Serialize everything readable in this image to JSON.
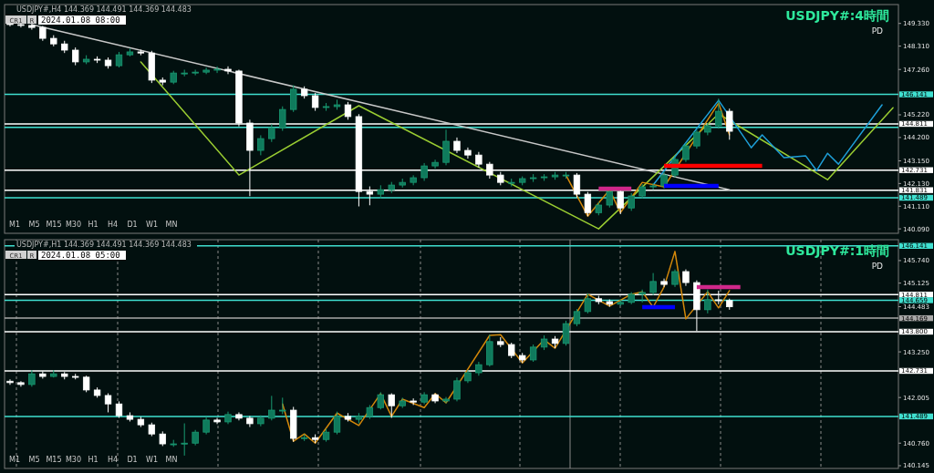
{
  "chart_data": [
    {
      "type": "candlestick",
      "title": "USDJPY#:4時間",
      "subtitle": "PD",
      "annotations": [
        "USDJPY#,H4  144.369 144.491 144.369 144.483",
        "CR1",
        "R",
        "2024.01.08 08:00",
        "M1",
        "M5",
        "M15",
        "M30",
        "H1",
        "H4",
        "D1",
        "W1",
        "MN"
      ],
      "categories": [
        null,
        null,
        null,
        null,
        null,
        null,
        null,
        null,
        null,
        null,
        null,
        null,
        null,
        null,
        null,
        null,
        null,
        null,
        null,
        null,
        null,
        null,
        null,
        null,
        null,
        null,
        null,
        null,
        null,
        null,
        null,
        null,
        null,
        null,
        null,
        null,
        null,
        null,
        null,
        null,
        null,
        null,
        null,
        null,
        null,
        null,
        null,
        null,
        null,
        null,
        null,
        null,
        null,
        null,
        null,
        null,
        null,
        null,
        null,
        null,
        null,
        null,
        null,
        null,
        null,
        null,
        null,
        null,
        null,
        null,
        null,
        null,
        null,
        null,
        null,
        null,
        null,
        null,
        null,
        null,
        null,
        null
      ],
      "colors": [
        "#ffffff",
        "#ffffff",
        "#ffffff",
        "#ffffff",
        "#ffffff",
        "#ffffff",
        "#ffffff",
        "#0f7a5c",
        "#ffffff",
        "#ffffff",
        "#0f7a5c",
        "#0f7a5c",
        "#ffffff",
        "#ffffff",
        "#ffffff",
        "#0f7a5c",
        "#0f7a5c",
        "#0f7a5c",
        "#0f7a5c",
        "#0f7a5c",
        "#ffffff",
        "#ffffff",
        "#ffffff",
        "#0f7a5c",
        "#0f7a5c",
        "#0f7a5c",
        "#0f7a5c",
        "#ffffff",
        "#ffffff",
        "#0f7a5c",
        "#0f7a5c",
        "#ffffff",
        "#ffffff",
        "#ffffff",
        "#0f7a5c",
        "#0f7a5c",
        "#0f7a5c",
        "#0f7a5c",
        "#0f7a5c",
        "#0f7a5c",
        "#0f7a5c",
        "#ffffff",
        "#ffffff",
        "#ffffff",
        "#ffffff",
        "#ffffff",
        "#0f7a5c",
        "#0f7a5c",
        "#0f7a5c",
        "#0f7a5c",
        "#0f7a5c",
        "#0f7a5c",
        "#ffffff",
        "#ffffff",
        "#0f7a5c",
        "#0f7a5c",
        "#ffffff",
        "#0f7a5c",
        "#0f7a5c",
        "#0f7a5c",
        "#0f7a5c",
        "#0f7a5c",
        "#0f7a5c",
        "#0f7a5c",
        "#0f7a5c",
        "#0f7a5c",
        "#ffffff",
        null,
        null,
        null,
        null,
        null,
        null,
        null,
        null,
        null,
        null,
        null,
        null,
        null,
        null,
        null
      ],
      "ohlc": [
        [
          149.35,
          149.45,
          149.2,
          149.28
        ],
        [
          149.28,
          149.38,
          149.15,
          149.24
        ],
        [
          149.24,
          149.3,
          149.05,
          149.15
        ],
        [
          149.15,
          149.22,
          148.55,
          148.66
        ],
        [
          148.66,
          148.8,
          148.3,
          148.41
        ],
        [
          148.41,
          148.55,
          148.0,
          148.13
        ],
        [
          148.13,
          148.25,
          147.45,
          147.6
        ],
        [
          147.6,
          147.9,
          147.5,
          147.72
        ],
        [
          147.72,
          147.85,
          147.55,
          147.68
        ],
        [
          147.68,
          147.8,
          147.3,
          147.43
        ],
        [
          147.43,
          148.05,
          147.35,
          147.92
        ],
        [
          147.92,
          148.2,
          147.85,
          148.05
        ],
        [
          148.05,
          148.15,
          147.9,
          148.0
        ],
        [
          148.0,
          148.1,
          146.65,
          146.78
        ],
        [
          146.78,
          146.9,
          146.55,
          146.69
        ],
        [
          146.69,
          147.2,
          146.6,
          147.1
        ],
        [
          147.1,
          147.25,
          146.95,
          147.1
        ],
        [
          147.1,
          147.25,
          147.0,
          147.14
        ],
        [
          147.14,
          147.35,
          147.05,
          147.23
        ],
        [
          147.23,
          147.4,
          147.1,
          147.27
        ],
        [
          147.27,
          147.4,
          147.05,
          147.19
        ],
        [
          147.19,
          147.25,
          144.7,
          144.85
        ],
        [
          144.85,
          145.0,
          141.56,
          143.62
        ],
        [
          143.62,
          144.3,
          143.4,
          144.15
        ],
        [
          144.15,
          144.8,
          144.0,
          144.64
        ],
        [
          144.64,
          145.6,
          144.5,
          145.46
        ],
        [
          145.46,
          146.55,
          145.35,
          146.37
        ],
        [
          146.37,
          146.5,
          145.95,
          146.08
        ],
        [
          146.08,
          146.2,
          145.4,
          145.55
        ],
        [
          145.55,
          145.75,
          145.4,
          145.59
        ],
        [
          145.59,
          145.9,
          145.45,
          145.67
        ],
        [
          145.67,
          145.8,
          145.0,
          145.14
        ],
        [
          145.14,
          145.25,
          141.1,
          141.77
        ],
        [
          141.77,
          142.0,
          141.15,
          141.65
        ],
        [
          141.65,
          142.05,
          141.45,
          141.85
        ],
        [
          141.85,
          142.2,
          141.7,
          142.06
        ],
        [
          142.06,
          142.35,
          141.95,
          142.18
        ],
        [
          142.18,
          142.5,
          142.05,
          142.39
        ],
        [
          142.39,
          143.05,
          142.25,
          142.92
        ],
        [
          142.92,
          143.2,
          142.8,
          143.08
        ],
        [
          143.08,
          144.55,
          142.95,
          144.03
        ],
        [
          144.03,
          144.2,
          143.5,
          143.62
        ],
        [
          143.62,
          143.75,
          143.25,
          143.41
        ],
        [
          143.41,
          143.55,
          142.85,
          143.0
        ],
        [
          143.0,
          143.1,
          142.35,
          142.51
        ],
        [
          142.51,
          142.65,
          142.05,
          142.18
        ],
        [
          142.18,
          142.35,
          142.0,
          142.18
        ],
        [
          142.18,
          142.45,
          142.05,
          142.35
        ],
        [
          142.35,
          142.55,
          142.2,
          142.39
        ],
        [
          142.39,
          142.55,
          142.25,
          142.43
        ],
        [
          142.43,
          142.65,
          142.3,
          142.51
        ],
        [
          142.51,
          142.65,
          142.35,
          142.51
        ],
        [
          142.51,
          142.6,
          141.5,
          141.65
        ],
        [
          141.65,
          141.75,
          140.66,
          140.82
        ],
        [
          140.82,
          141.3,
          140.7,
          141.16
        ],
        [
          141.16,
          141.9,
          141.05,
          141.77
        ],
        [
          141.77,
          141.85,
          140.75,
          141.03
        ],
        [
          141.03,
          141.7,
          140.9,
          141.57
        ],
        [
          141.57,
          142.1,
          141.45,
          141.98
        ],
        [
          141.98,
          142.15,
          141.85,
          142.02
        ],
        [
          142.02,
          142.65,
          141.9,
          142.51
        ],
        [
          142.51,
          143.35,
          142.4,
          143.21
        ],
        [
          143.21,
          143.95,
          143.1,
          143.82
        ],
        [
          143.82,
          144.55,
          143.7,
          144.44
        ],
        [
          144.44,
          144.85,
          144.3,
          144.73
        ],
        [
          144.73,
          145.95,
          144.6,
          145.38
        ],
        [
          145.38,
          145.5,
          144.1,
          144.48
        ],
        null,
        null,
        null,
        null,
        null,
        null,
        null,
        null,
        null,
        null,
        null,
        null,
        null,
        null,
        null
      ],
      "series": [
        {
          "type": "line",
          "color": "#c8c8c8",
          "values": [
            null,
            null,
            149.28,
            null,
            null,
            null,
            null,
            null,
            null,
            null,
            null,
            null,
            null,
            null,
            null,
            null,
            null,
            null,
            null,
            null,
            null,
            null,
            null,
            null,
            null,
            null,
            null,
            null,
            null,
            null,
            null,
            null,
            null,
            null,
            null,
            null,
            null,
            null,
            null,
            null,
            null,
            null,
            null,
            null,
            null,
            null,
            null,
            null,
            null,
            null,
            null,
            null,
            null,
            null,
            null,
            null,
            null,
            null,
            null,
            null,
            null,
            null,
            null,
            null,
            null,
            null,
            141.85,
            null,
            null,
            null,
            null,
            null,
            null,
            null,
            null,
            null,
            null,
            null,
            null,
            null,
            null,
            null
          ]
        },
        {
          "type": "line",
          "color": "#9acd32",
          "values": [
            null,
            null,
            null,
            null,
            null,
            null,
            null,
            null,
            null,
            null,
            null,
            null,
            147.6,
            null,
            null,
            null,
            null,
            null,
            null,
            null,
            null,
            142.51,
            null,
            null,
            null,
            null,
            null,
            null,
            null,
            null,
            null,
            null,
            145.63,
            null,
            null,
            null,
            null,
            null,
            null,
            null,
            null,
            null,
            null,
            null,
            null,
            null,
            null,
            null,
            null,
            null,
            null,
            null,
            null,
            null,
            140.09,
            null,
            null,
            null,
            null,
            null,
            null,
            null,
            null,
            null,
            null,
            145.26,
            null,
            null,
            null,
            null,
            null,
            null,
            null,
            null,
            null,
            142.3,
            null,
            null,
            null,
            null,
            null,
            145.54
          ]
        },
        {
          "type": "line",
          "color": "#1e9fd8",
          "values": [
            null,
            null,
            null,
            null,
            null,
            null,
            null,
            null,
            null,
            null,
            null,
            null,
            null,
            null,
            null,
            null,
            null,
            null,
            null,
            null,
            null,
            null,
            null,
            null,
            null,
            null,
            null,
            null,
            null,
            null,
            null,
            null,
            null,
            null,
            null,
            null,
            null,
            null,
            null,
            null,
            null,
            null,
            null,
            null,
            null,
            null,
            null,
            null,
            null,
            null,
            null,
            null,
            null,
            null,
            null,
            null,
            null,
            null,
            null,
            142.06,
            null,
            null,
            null,
            null,
            null,
            145.87,
            null,
            null,
            143.74,
            144.32,
            null,
            143.29,
            null,
            143.37,
            142.71,
            143.49,
            143.0,
            null,
            null,
            null,
            145.67,
            null
          ]
        },
        {
          "type": "line",
          "color": "#d4880a",
          "values": [
            null,
            null,
            null,
            null,
            null,
            null,
            null,
            null,
            null,
            null,
            null,
            null,
            null,
            null,
            null,
            null,
            null,
            null,
            null,
            null,
            null,
            null,
            null,
            null,
            null,
            null,
            null,
            null,
            null,
            null,
            null,
            null,
            null,
            null,
            null,
            null,
            null,
            null,
            null,
            null,
            null,
            null,
            null,
            null,
            null,
            null,
            null,
            null,
            null,
            null,
            null,
            142.51,
            null,
            140.66,
            null,
            141.85,
            140.82,
            null,
            142.18,
            null,
            141.98,
            null,
            null,
            null,
            null,
            145.75,
            144.32,
            null,
            null,
            null,
            null,
            null,
            null,
            null,
            null,
            null,
            null,
            null,
            null,
            null,
            null,
            null
          ]
        },
        {
          "type": "step",
          "color": "#d0288a",
          "values": [
            null,
            null,
            null,
            null,
            null,
            null,
            null,
            null,
            null,
            null,
            null,
            null,
            null,
            null,
            null,
            null,
            null,
            null,
            null,
            null,
            null,
            null,
            null,
            null,
            null,
            null,
            null,
            null,
            null,
            null,
            null,
            null,
            null,
            null,
            null,
            null,
            null,
            null,
            null,
            null,
            null,
            null,
            null,
            null,
            null,
            null,
            null,
            null,
            null,
            null,
            null,
            null,
            null,
            null,
            141.9,
            null,
            null,
            141.9,
            null,
            null,
            null,
            null,
            null,
            null,
            null,
            null,
            null,
            null,
            null,
            null,
            null,
            null,
            null,
            null,
            null,
            null,
            null,
            null,
            null,
            null,
            null,
            null
          ]
        },
        {
          "type": "step",
          "color": "#0000ff",
          "values": [
            null,
            null,
            null,
            null,
            null,
            null,
            null,
            null,
            null,
            null,
            null,
            null,
            null,
            null,
            null,
            null,
            null,
            null,
            null,
            null,
            null,
            null,
            null,
            null,
            null,
            null,
            null,
            null,
            null,
            null,
            null,
            null,
            null,
            null,
            null,
            null,
            null,
            null,
            null,
            null,
            null,
            null,
            null,
            null,
            null,
            null,
            null,
            null,
            null,
            null,
            null,
            null,
            null,
            null,
            null,
            null,
            null,
            null,
            null,
            null,
            142.02,
            null,
            null,
            null,
            null,
            142.02,
            null,
            null,
            null,
            null,
            null,
            null,
            null,
            null,
            null,
            null,
            null,
            null,
            null,
            null,
            null,
            null
          ]
        },
        {
          "type": "step",
          "color": "#ff0000",
          "values": [
            null,
            null,
            null,
            null,
            null,
            null,
            null,
            null,
            null,
            null,
            null,
            null,
            null,
            null,
            null,
            null,
            null,
            null,
            null,
            null,
            null,
            null,
            null,
            null,
            null,
            null,
            null,
            null,
            null,
            null,
            null,
            null,
            null,
            null,
            null,
            null,
            null,
            null,
            null,
            null,
            null,
            null,
            null,
            null,
            null,
            null,
            null,
            null,
            null,
            null,
            null,
            null,
            null,
            null,
            null,
            null,
            null,
            null,
            null,
            null,
            142.92,
            null,
            null,
            null,
            null,
            null,
            null,
            null,
            null,
            142.92,
            null,
            null,
            null,
            null,
            null,
            null,
            null,
            null,
            null,
            null,
            null,
            null
          ]
        }
      ],
      "ylim": [
        139.89,
        150.18
      ],
      "yticks": [
        {
          "value": 149.33,
          "label": "149.330"
        },
        {
          "value": 148.31,
          "label": "148.310"
        },
        {
          "value": 147.26,
          "label": "147.260"
        },
        {
          "value": 145.22,
          "label": "145.220"
        },
        {
          "value": 144.2,
          "label": "144.200"
        },
        {
          "value": 143.15,
          "label": "143.150"
        },
        {
          "value": 142.13,
          "label": "142.130"
        },
        {
          "value": 141.11,
          "label": "141.110"
        },
        {
          "value": 140.09,
          "label": "140.090"
        }
      ],
      "ref_lines": [
        {
          "axis": "y",
          "value": 146.141,
          "label": "146.141",
          "color": "#40e0d0"
        },
        {
          "axis": "y",
          "value": 144.811,
          "label": "144.811",
          "color": "#ffffff"
        },
        {
          "axis": "y",
          "value": 144.659,
          "label": null,
          "color": "#40e0d0"
        },
        {
          "axis": "y",
          "value": 142.731,
          "label": "142.731",
          "color": "#ffffff"
        },
        {
          "axis": "y",
          "value": 141.831,
          "label": "141.831",
          "color": "#ffffff"
        },
        {
          "axis": "y",
          "value": 141.489,
          "label": "141.489",
          "color": "#40e0d0"
        }
      ],
      "tick_labels": "y"
    },
    {
      "type": "candlestick",
      "title": "USDJPY#:1時間",
      "subtitle": "PD",
      "annotations": [
        "USDJPY#,H1  144.369 144.491 144.369 144.483",
        "CR1",
        "R",
        "2024.01.08 05:00",
        "M1",
        "M5",
        "M15",
        "M30",
        "H1",
        "H4",
        "D1",
        "W1",
        "MN"
      ],
      "categories": [
        null,
        null,
        null,
        null,
        null,
        null,
        null,
        null,
        null,
        null,
        null,
        null,
        null,
        null,
        null,
        null,
        null,
        null,
        null,
        null,
        null,
        null,
        null,
        null,
        null,
        null,
        null,
        null,
        null,
        null,
        null,
        null,
        null,
        null,
        null,
        null,
        null,
        null,
        null,
        null,
        null,
        null,
        null,
        null,
        null,
        null,
        null,
        null,
        null,
        null,
        null,
        null,
        null,
        null,
        null,
        null,
        null,
        null,
        null,
        null,
        null,
        null,
        null,
        null,
        null,
        null,
        null,
        null,
        null,
        null,
        null,
        null,
        null,
        null,
        null,
        null,
        null,
        null,
        null,
        null,
        null,
        null
      ],
      "colors": [
        "#ffffff",
        "#ffffff",
        "#0f7a5c",
        "#ffffff",
        "#0f7a5c",
        "#ffffff",
        "#ffffff",
        "#ffffff",
        "#ffffff",
        "#ffffff",
        "#ffffff",
        "#ffffff",
        "#ffffff",
        "#ffffff",
        "#ffffff",
        "#0f7a5c",
        "#0f7a5c",
        "#0f7a5c",
        "#0f7a5c",
        "#ffffff",
        "#0f7a5c",
        "#ffffff",
        "#ffffff",
        "#0f7a5c",
        "#0f7a5c",
        "#0f7a5c",
        "#ffffff",
        "#0f7a5c",
        "#ffffff",
        "#0f7a5c",
        "#0f7a5c",
        "#ffffff",
        "#0f7a5c",
        "#0f7a5c",
        "#0f7a5c",
        "#ffffff",
        "#0f7a5c",
        "#ffffff",
        "#0f7a5c",
        "#ffffff",
        "#0f7a5c",
        "#0f7a5c",
        "#0f7a5c",
        "#0f7a5c",
        "#0f7a5c",
        "#ffffff",
        "#ffffff",
        "#ffffff",
        "#0f7a5c",
        "#0f7a5c",
        "#ffffff",
        "#0f7a5c",
        "#0f7a5c",
        "#0f7a5c",
        "#ffffff",
        "#ffffff",
        "#0f7a5c",
        "#0f7a5c",
        "#0f7a5c",
        "#0f7a5c",
        "#ffffff",
        "#0f7a5c",
        "#ffffff",
        "#ffffff",
        "#0f7a5c",
        "#ffffff",
        "#ffffff",
        null,
        null,
        null,
        null,
        null,
        null,
        null,
        null,
        null,
        null,
        null,
        null,
        null,
        null,
        null
      ],
      "ohlc": [
        [
          142.45,
          142.5,
          142.35,
          142.41
        ],
        [
          142.41,
          142.45,
          142.3,
          142.36
        ],
        [
          142.36,
          142.75,
          142.3,
          142.65
        ],
        [
          142.65,
          142.72,
          142.52,
          142.58
        ],
        [
          142.58,
          142.75,
          142.55,
          142.65
        ],
        [
          142.65,
          142.7,
          142.5,
          142.58
        ],
        [
          142.58,
          142.65,
          142.5,
          142.56
        ],
        [
          142.56,
          142.6,
          142.15,
          142.21
        ],
        [
          142.21,
          142.28,
          142.0,
          142.06
        ],
        [
          142.06,
          142.12,
          141.6,
          141.83
        ],
        [
          141.83,
          141.9,
          141.45,
          141.51
        ],
        [
          141.51,
          141.6,
          141.35,
          141.41
        ],
        [
          141.41,
          141.48,
          141.2,
          141.26
        ],
        [
          141.26,
          141.32,
          140.95,
          141.01
        ],
        [
          141.01,
          141.08,
          140.68,
          140.74
        ],
        [
          140.74,
          140.85,
          140.66,
          140.74
        ],
        [
          140.74,
          141.3,
          140.42,
          140.76
        ],
        [
          140.76,
          141.12,
          140.7,
          141.06
        ],
        [
          141.06,
          141.48,
          141.0,
          141.39
        ],
        [
          141.39,
          141.45,
          141.28,
          141.34
        ],
        [
          141.34,
          141.62,
          141.28,
          141.54
        ],
        [
          141.54,
          141.6,
          141.38,
          141.44
        ],
        [
          141.44,
          141.5,
          141.2,
          141.29
        ],
        [
          141.29,
          141.52,
          141.22,
          141.44
        ],
        [
          141.44,
          142.05,
          141.38,
          141.66
        ],
        [
          141.66,
          142.0,
          141.55,
          141.66
        ],
        [
          141.66,
          141.75,
          140.8,
          140.89
        ],
        [
          140.89,
          141.0,
          140.82,
          140.91
        ],
        [
          140.91,
          141.0,
          140.76,
          140.86
        ],
        [
          140.86,
          141.15,
          140.8,
          141.06
        ],
        [
          141.06,
          141.62,
          141.0,
          141.49
        ],
        [
          141.49,
          141.58,
          141.35,
          141.41
        ],
        [
          141.41,
          141.58,
          141.3,
          141.49
        ],
        [
          141.49,
          141.8,
          141.42,
          141.73
        ],
        [
          141.73,
          142.15,
          141.68,
          142.08
        ],
        [
          142.08,
          142.12,
          141.45,
          141.78
        ],
        [
          141.78,
          142.0,
          141.72,
          141.91
        ],
        [
          141.91,
          141.98,
          141.8,
          141.88
        ],
        [
          141.88,
          142.15,
          141.82,
          142.08
        ],
        [
          142.08,
          142.12,
          141.85,
          141.91
        ],
        [
          141.91,
          142.02,
          141.85,
          141.96
        ],
        [
          141.96,
          142.55,
          141.9,
          142.46
        ],
        [
          142.46,
          142.75,
          142.4,
          142.68
        ],
        [
          142.68,
          142.98,
          142.6,
          142.9
        ],
        [
          142.9,
          143.72,
          142.85,
          143.53
        ],
        [
          143.53,
          143.65,
          143.38,
          143.45
        ],
        [
          143.45,
          143.5,
          143.08,
          143.15
        ],
        [
          143.15,
          143.22,
          142.95,
          143.03
        ],
        [
          143.03,
          143.45,
          142.98,
          143.38
        ],
        [
          143.38,
          143.7,
          143.3,
          143.6
        ],
        [
          143.6,
          143.68,
          143.35,
          143.48
        ],
        [
          143.48,
          144.1,
          143.42,
          144.02
        ],
        [
          144.02,
          144.42,
          143.95,
          144.35
        ],
        [
          144.35,
          144.85,
          144.3,
          144.7
        ],
        [
          144.7,
          144.78,
          144.55,
          144.62
        ],
        [
          144.62,
          144.68,
          144.48,
          144.55
        ],
        [
          144.55,
          144.68,
          144.5,
          144.6
        ],
        [
          144.6,
          144.88,
          144.55,
          144.82
        ],
        [
          144.82,
          144.95,
          144.6,
          144.87
        ],
        [
          144.87,
          145.4,
          144.8,
          145.17
        ],
        [
          145.17,
          145.25,
          145.02,
          145.09
        ],
        [
          145.09,
          145.5,
          145.02,
          145.44
        ],
        [
          145.44,
          145.5,
          145.05,
          145.14
        ],
        [
          145.14,
          145.2,
          143.82,
          144.4
        ],
        [
          144.4,
          144.95,
          144.3,
          144.67
        ],
        [
          144.67,
          144.92,
          144.55,
          144.65
        ],
        [
          144.65,
          144.7,
          144.4,
          144.48
        ],
        null,
        null,
        null,
        null,
        null,
        null,
        null,
        null,
        null,
        null,
        null,
        null,
        null,
        null,
        null
      ],
      "series": [
        {
          "type": "line",
          "color": "#d4880a",
          "values": [
            null,
            null,
            null,
            null,
            null,
            null,
            null,
            null,
            null,
            null,
            null,
            null,
            null,
            null,
            null,
            null,
            null,
            null,
            null,
            null,
            null,
            null,
            null,
            null,
            null,
            141.83,
            140.81,
            141.01,
            140.76,
            null,
            141.58,
            null,
            141.24,
            null,
            142.11,
            141.49,
            141.96,
            null,
            141.73,
            142.11,
            141.86,
            null,
            null,
            null,
            143.7,
            143.72,
            null,
            142.95,
            null,
            143.58,
            143.35,
            null,
            null,
            144.82,
            null,
            144.5,
            null,
            144.82,
            144.89,
            144.47,
            145.02,
            145.99,
            144.15,
            null,
            144.89,
            144.45,
            144.92,
            null,
            null,
            null,
            null,
            null,
            null,
            null,
            null,
            null,
            null,
            null,
            null,
            null,
            null,
            null
          ]
        },
        {
          "type": "step",
          "color": "#d0288a",
          "values": [
            null,
            null,
            null,
            null,
            null,
            null,
            null,
            null,
            null,
            null,
            null,
            null,
            null,
            null,
            null,
            null,
            null,
            null,
            null,
            null,
            null,
            null,
            null,
            null,
            null,
            null,
            null,
            null,
            null,
            null,
            null,
            null,
            null,
            null,
            null,
            null,
            null,
            null,
            null,
            null,
            null,
            null,
            null,
            null,
            null,
            null,
            null,
            null,
            null,
            null,
            null,
            null,
            null,
            null,
            null,
            null,
            null,
            null,
            null,
            null,
            null,
            null,
            null,
            145.02,
            null,
            null,
            null,
            145.02,
            null,
            null,
            null,
            null,
            null,
            null,
            null,
            null,
            null,
            null,
            null,
            null,
            null,
            null
          ]
        },
        {
          "type": "step",
          "color": "#0000ff",
          "values": [
            null,
            null,
            null,
            null,
            null,
            null,
            null,
            null,
            null,
            null,
            null,
            null,
            null,
            null,
            null,
            null,
            null,
            null,
            null,
            null,
            null,
            null,
            null,
            null,
            null,
            null,
            null,
            null,
            null,
            null,
            null,
            null,
            null,
            null,
            null,
            null,
            null,
            null,
            null,
            null,
            null,
            null,
            null,
            null,
            null,
            null,
            null,
            null,
            null,
            null,
            null,
            null,
            null,
            null,
            null,
            null,
            null,
            null,
            144.47,
            null,
            null,
            144.47,
            null,
            null,
            null,
            null,
            null,
            null,
            null,
            null,
            null,
            null,
            null,
            null,
            null,
            null,
            null,
            null,
            null,
            null,
            null,
            null
          ]
        }
      ],
      "ylim": [
        140.07,
        146.31
      ],
      "yticks": [
        {
          "value": 145.74,
          "label": "145.740"
        },
        {
          "value": 145.125,
          "label": "145.125"
        },
        {
          "value": 144.483,
          "label": "144.483"
        },
        {
          "value": 143.25,
          "label": "143.250"
        },
        {
          "value": 142.005,
          "label": "142.005"
        },
        {
          "value": 140.76,
          "label": "140.760"
        },
        {
          "value": 140.145,
          "label": "140.145"
        }
      ],
      "ref_lines": [
        {
          "axis": "y",
          "value": 146.141,
          "label": "146.141",
          "color": "#40e0d0"
        },
        {
          "axis": "y",
          "value": 144.811,
          "label": "144.811",
          "color": "#ffffff"
        },
        {
          "axis": "y",
          "value": 144.659,
          "label": "144.659",
          "color": "#40e0d0"
        },
        {
          "axis": "y",
          "value": 144.169,
          "label": "144.169",
          "color": "#a8a8a8"
        },
        {
          "axis": "y",
          "value": 143.8,
          "label": "143.800",
          "color": "#ffffff"
        },
        {
          "axis": "y",
          "value": 142.731,
          "label": "142.731",
          "color": "#ffffff"
        },
        {
          "axis": "y",
          "value": 141.489,
          "label": "141.489",
          "color": "#40e0d0"
        }
      ],
      "grid": "x",
      "tick_labels": "y"
    }
  ]
}
